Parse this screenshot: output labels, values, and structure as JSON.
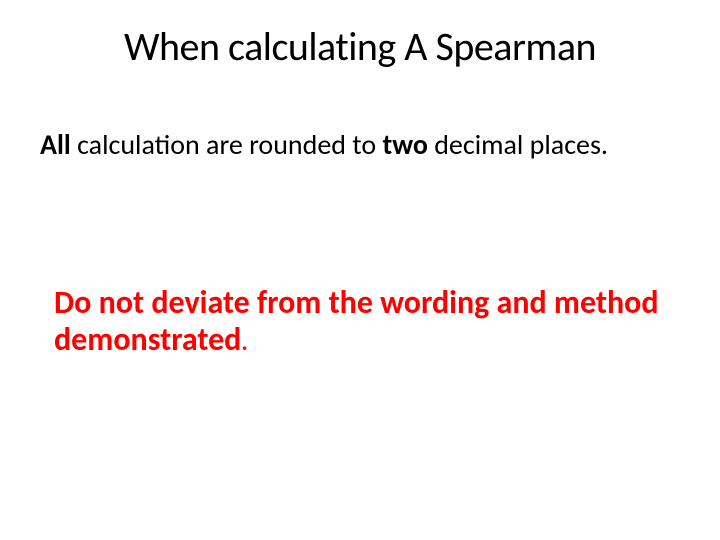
{
  "slide": {
    "title": "When calculating A Spearman",
    "line1_all": "All",
    "line1_mid": " calculation are rounded to ",
    "line1_two": "two",
    "line1_end": " decimal places.",
    "line2_main": "Do not deviate from the wording and method demonstrated",
    "line2_period": "."
  },
  "styling": {
    "background_color": "#ffffff",
    "title_color": "#000000",
    "title_fontsize": 40,
    "body_color": "#000000",
    "body_fontsize": 28,
    "warning_color": "#ff0000",
    "warning_fontsize": 32,
    "font_family": "Calibri"
  }
}
